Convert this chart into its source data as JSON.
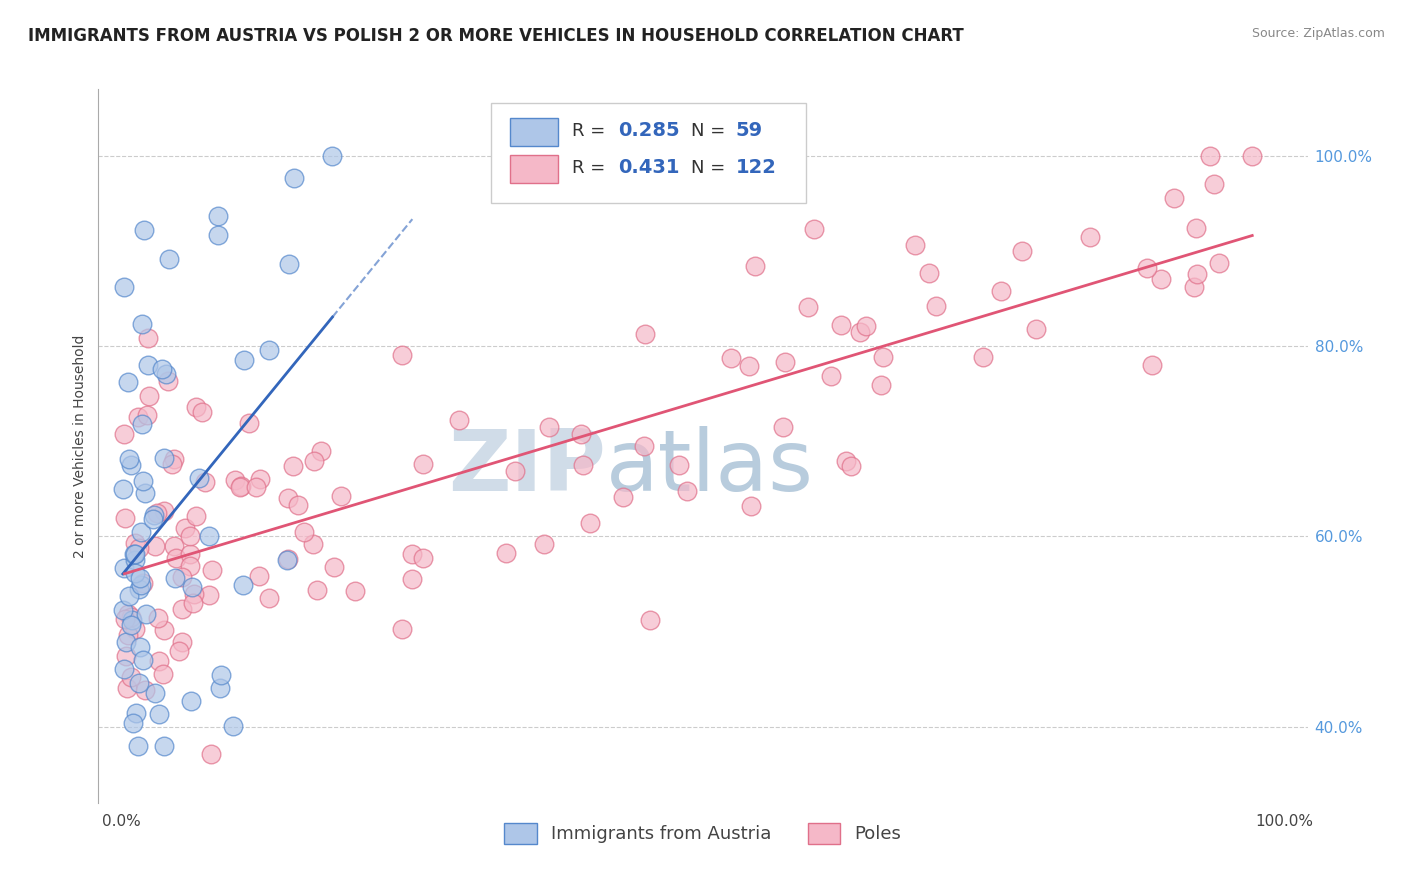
{
  "title": "IMMIGRANTS FROM AUSTRIA VS POLISH 2 OR MORE VEHICLES IN HOUSEHOLD CORRELATION CHART",
  "source": "Source: ZipAtlas.com",
  "ylabel": "2 or more Vehicles in Household",
  "legend_labels": [
    "Immigrants from Austria",
    "Poles"
  ],
  "blue_R": 0.285,
  "blue_N": 59,
  "pink_R": 0.431,
  "pink_N": 122,
  "blue_color": "#aec6e8",
  "pink_color": "#f5b8c8",
  "blue_edge_color": "#5588cc",
  "pink_edge_color": "#e0708a",
  "blue_line_color": "#3366bb",
  "pink_line_color": "#e05575",
  "watermark_zip": "ZIP",
  "watermark_atlas": "atlas",
  "zip_color": "#d0dce8",
  "atlas_color": "#b8ccdd",
  "grid_color": "#cccccc",
  "background_color": "#ffffff",
  "title_fontsize": 12,
  "source_fontsize": 9,
  "axis_label_fontsize": 10,
  "tick_fontsize": 11,
  "legend_fontsize": 14,
  "right_tick_color": "#5599dd",
  "scatter_size": 180,
  "scatter_alpha": 0.7,
  "scatter_lw": 1.0
}
